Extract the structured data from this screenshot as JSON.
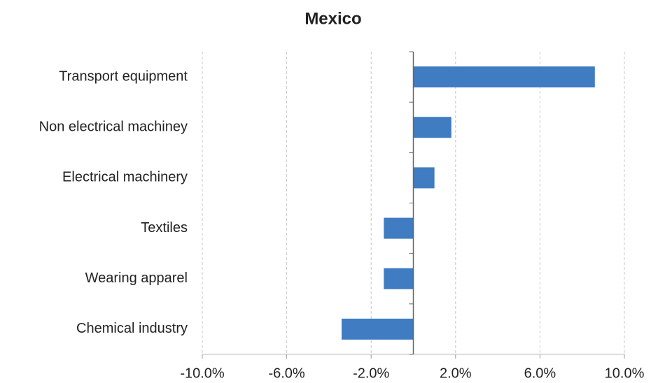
{
  "chart_data": {
    "type": "bar",
    "orientation": "horizontal",
    "title": "Mexico",
    "categories": [
      "Transport equipment",
      "Non electrical machiney",
      "Electrical machinery",
      "Textiles",
      "Wearing apparel",
      "Chemical industry"
    ],
    "values": [
      8.6,
      1.8,
      1.0,
      -1.4,
      -1.4,
      -3.4
    ],
    "color": "#3f7cc1",
    "xlim": [
      -10,
      10
    ],
    "xticks": [
      {
        "value": -10,
        "label": "-10.0%"
      },
      {
        "value": -6,
        "label": "-6.0%"
      },
      {
        "value": -2,
        "label": "-2.0%"
      },
      {
        "value": 2,
        "label": "2.0%"
      },
      {
        "value": 6,
        "label": "6.0%"
      },
      {
        "value": 10,
        "label": "10.0%"
      }
    ],
    "grid": true
  }
}
